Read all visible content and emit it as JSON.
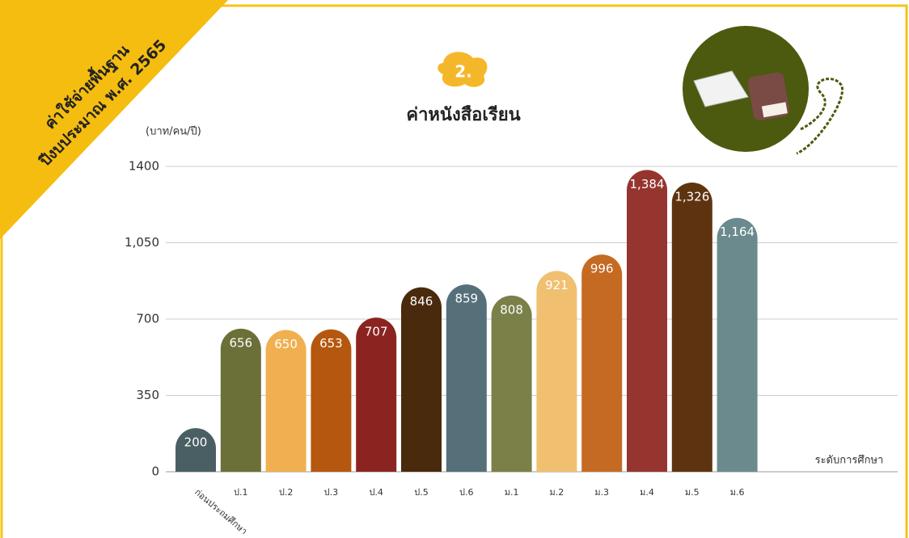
{
  "header": {
    "banner_lines": [
      "ค่าใช้จ่ายพื้นฐาน",
      "ปีงบประมาณ พ.ศ. 2565"
    ],
    "badge": "2."
  },
  "chart_data": {
    "type": "bar",
    "title": "ค่าหนังสือเรียน",
    "y_label": "(บาท/คน/ปี)",
    "x_label": "ระดับการศึกษา",
    "categories": [
      "ก่อนประถมศึกษา",
      "ป.1",
      "ป.2",
      "ป.3",
      "ป.4",
      "ป.5",
      "ป.6",
      "ม.1",
      "ม.2",
      "ม.3",
      "ม.4",
      "ม.5",
      "ม.6"
    ],
    "values": [
      200,
      656,
      650,
      653,
      707,
      846,
      859,
      808,
      921,
      996,
      1384,
      1326,
      1164
    ],
    "value_labels": [
      "200",
      "656",
      "650",
      "653",
      "707",
      "846",
      "859",
      "808",
      "921",
      "996",
      "1,384",
      "1,326",
      "1,164"
    ],
    "colors": [
      "#4a5f63",
      "#6b7039",
      "#f0b050",
      "#b5570f",
      "#8b2420",
      "#4a2a0d",
      "#56707a",
      "#7a8048",
      "#f0c070",
      "#c56a22",
      "#963530",
      "#5e3410",
      "#6b8a8e"
    ],
    "ylim": [
      0,
      1400
    ],
    "yticks": [
      0,
      350,
      700,
      {
        "value": 1050,
        "label": "1,050"
      },
      1400
    ],
    "grid": true
  }
}
